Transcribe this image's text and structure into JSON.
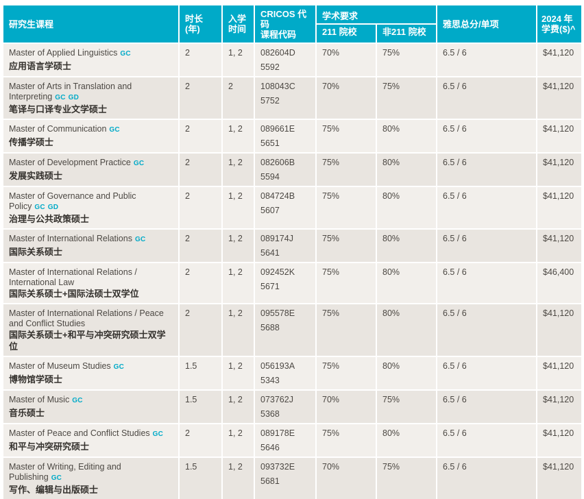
{
  "colors": {
    "header_bg": "#00aac8",
    "row_light": "#f2efeb",
    "row_dark": "#e9e5e0",
    "tag_color": "#00aac8",
    "header_text": "#ffffff",
    "body_text": "#4c4843"
  },
  "table": {
    "header": {
      "course": "研究生课程",
      "duration": "时长\n(年)",
      "intake": "入学\n时间",
      "cricos": "CRICOS 代码\n课程代码",
      "academic": "学术要求",
      "tier211": "211 院校",
      "non211": "非211 院校",
      "ielts": "雅思总分/单项",
      "fee": "2024 年\n学费($)^"
    },
    "rows": [
      {
        "name_en": "Master of Applied Linguistics",
        "tags": [
          "GC"
        ],
        "name_zh": "应用语言学硕士",
        "duration": "2",
        "intake": "1, 2",
        "cricos_code": "082604D",
        "cricos_num": "5592",
        "pct_211": "70%",
        "pct_non211": "75%",
        "ielts": "6.5 / 6",
        "fee": "$41,120"
      },
      {
        "name_en": "Master of Arts in Translation and Interpreting",
        "tags": [
          "GC",
          "GD"
        ],
        "name_zh": "笔译与口译专业文学硕士",
        "duration": "2",
        "intake": "2",
        "cricos_code": "108043C",
        "cricos_num": "5752",
        "pct_211": "70%",
        "pct_non211": "75%",
        "ielts": "6.5 / 6",
        "fee": "$41,120"
      },
      {
        "name_en": "Master of Communication",
        "tags": [
          "GC"
        ],
        "name_zh": "传播学硕士",
        "duration": "2",
        "intake": "1, 2",
        "cricos_code": "089661E",
        "cricos_num": "5651",
        "pct_211": "75%",
        "pct_non211": "80%",
        "ielts": "6.5 / 6",
        "fee": "$41,120"
      },
      {
        "name_en": "Master of Development Practice",
        "tags": [
          "GC"
        ],
        "name_zh": "发展实践硕士",
        "duration": "2",
        "intake": "1, 2",
        "cricos_code": "082606B",
        "cricos_num": "5594",
        "pct_211": "75%",
        "pct_non211": "80%",
        "ielts": "6.5 / 6",
        "fee": "$41,120"
      },
      {
        "name_en": "Master of Governance and Public Policy",
        "tags": [
          "GC",
          "GD"
        ],
        "name_zh": "治理与公共政策硕士",
        "duration": "2",
        "intake": "1, 2",
        "cricos_code": "084724B",
        "cricos_num": "5607",
        "pct_211": "75%",
        "pct_non211": "80%",
        "ielts": "6.5 / 6",
        "fee": "$41,120"
      },
      {
        "name_en": "Master of International Relations",
        "tags": [
          "GC"
        ],
        "name_zh": "国际关系硕士",
        "duration": "2",
        "intake": "1, 2",
        "cricos_code": "089174J",
        "cricos_num": "5641",
        "pct_211": "75%",
        "pct_non211": "80%",
        "ielts": "6.5 / 6",
        "fee": "$41,120"
      },
      {
        "name_en": "Master of International Relations / International Law",
        "tags": [],
        "name_zh": "国际关系硕士+国际法硕士双学位",
        "duration": "2",
        "intake": "1, 2",
        "cricos_code": "092452K",
        "cricos_num": "5671",
        "pct_211": "75%",
        "pct_non211": "80%",
        "ielts": "6.5 / 6",
        "fee": "$46,400"
      },
      {
        "name_en": "Master of International Relations / Peace and Conflict Studies",
        "tags": [],
        "name_zh": "国际关系硕士+和平与冲突研究硕士双学位",
        "duration": "2",
        "intake": "1, 2",
        "cricos_code": "095578E",
        "cricos_num": "5688",
        "pct_211": "75%",
        "pct_non211": "80%",
        "ielts": "6.5 / 6",
        "fee": "$41,120"
      },
      {
        "name_en": "Master of Museum Studies",
        "tags": [
          "GC"
        ],
        "name_zh": "博物馆学硕士",
        "duration": "1.5",
        "intake": "1, 2",
        "cricos_code": "056193A",
        "cricos_num": "5343",
        "pct_211": "75%",
        "pct_non211": "80%",
        "ielts": "6.5 / 6",
        "fee": "$41,120"
      },
      {
        "name_en": "Master of Music",
        "tags": [
          "GC"
        ],
        "name_zh": "音乐硕士",
        "duration": "1.5",
        "intake": "1, 2",
        "cricos_code": "073762J",
        "cricos_num": "5368",
        "pct_211": "70%",
        "pct_non211": "75%",
        "ielts": "6.5 / 6",
        "fee": "$41,120"
      },
      {
        "name_en": "Master of Peace and Conflict Studies",
        "tags": [
          "GC"
        ],
        "name_zh": "和平与冲突研究硕士",
        "duration": "2",
        "intake": "1, 2",
        "cricos_code": "089178E",
        "cricos_num": "5646",
        "pct_211": "75%",
        "pct_non211": "80%",
        "ielts": "6.5 / 6",
        "fee": "$41,120"
      },
      {
        "name_en": "Master of Writing, Editing and Publishing",
        "tags": [
          "GC"
        ],
        "name_zh": "写作、编辑与出版硕士",
        "duration": "1.5",
        "intake": "1, 2",
        "cricos_code": "093732E",
        "cricos_num": "5681",
        "pct_211": "70%",
        "pct_non211": "75%",
        "ielts": "6.5 / 6",
        "fee": "$41,120"
      }
    ]
  }
}
